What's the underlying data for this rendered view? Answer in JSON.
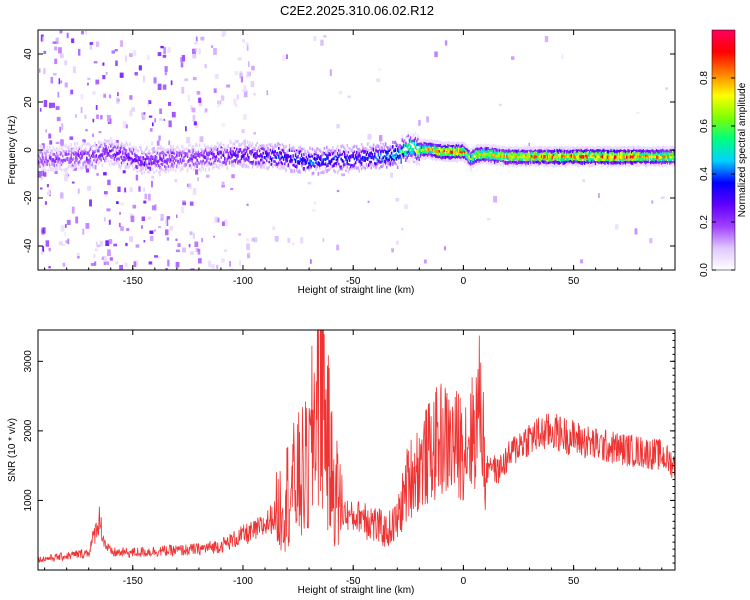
{
  "figure": {
    "title": "C2E2.2025.310.06.02.R12"
  },
  "chart_data": [
    {
      "type": "heatmap",
      "xlabel": "Height of straight line (km)",
      "ylabel": "Frequency (Hz)",
      "xlim": [
        -193,
        96
      ],
      "ylim": [
        -50,
        50
      ],
      "xticks": [
        -150,
        -100,
        -50,
        0,
        50
      ],
      "yticks": [
        -40,
        -20,
        0,
        20,
        40
      ],
      "colorbar": {
        "label": "Normalized spectral amplitude",
        "range": [
          0.0,
          1.0
        ],
        "ticks": [
          0.0,
          0.2,
          0.4,
          0.6,
          0.8
        ],
        "tick_labels": [
          "0.0",
          "0.2",
          "0.4",
          "0.6",
          "0.8"
        ],
        "colormap": [
          "#ffffff",
          "#e0c8ff",
          "#a040ff",
          "#6000ff",
          "#0000ff",
          "#00d0ff",
          "#00ff80",
          "#80ff00",
          "#ffff00",
          "#ff8000",
          "#ff0000",
          "#ff0060"
        ]
      },
      "ridge": {
        "x": [
          -190,
          -175,
          -160,
          -145,
          -130,
          -115,
          -100,
          -85,
          -70,
          -55,
          -40,
          -30,
          -25,
          -20,
          -15,
          -10,
          -5,
          0,
          3,
          6,
          10,
          20,
          40,
          60,
          80,
          96
        ],
        "y": [
          -3,
          -2,
          0,
          -4,
          -3,
          -2,
          -1,
          -2,
          -4,
          -3,
          -2,
          -1,
          2,
          1,
          1,
          0,
          0,
          0,
          -3,
          -1,
          -1,
          -2,
          -2,
          -2,
          -2,
          -2
        ],
        "peak_amplitude": [
          0.2,
          0.22,
          0.25,
          0.3,
          0.22,
          0.25,
          0.3,
          0.35,
          0.4,
          0.35,
          0.4,
          0.5,
          0.65,
          0.7,
          0.8,
          0.9,
          0.95,
          0.85,
          0.7,
          0.8,
          0.75,
          0.8,
          0.85,
          0.9,
          0.85,
          0.75
        ]
      }
    },
    {
      "type": "line",
      "xlabel": "Height of straight line (km)",
      "ylabel": "SNR (10 * v/v)",
      "xlim": [
        -193,
        96
      ],
      "ylim": [
        0,
        3450
      ],
      "xticks": [
        -150,
        -100,
        -50,
        0,
        50
      ],
      "yticks": [
        1000,
        2000,
        3000
      ],
      "color": "#ee3333",
      "series": [
        {
          "x": [
            -193,
            -180,
            -170,
            -165,
            -163,
            -160,
            -150,
            -140,
            -130,
            -120,
            -110,
            -100,
            -95,
            -90,
            -85,
            -80,
            -75,
            -70,
            -67,
            -65,
            -62,
            -60,
            -55,
            -50,
            -45,
            -40,
            -35,
            -30,
            -25,
            -20,
            -15,
            -10,
            -5,
            0,
            5,
            8,
            10,
            12,
            15,
            20,
            25,
            30,
            40,
            50,
            60,
            70,
            80,
            90,
            96
          ],
          "y": [
            150,
            200,
            250,
            750,
            400,
            250,
            250,
            270,
            280,
            300,
            350,
            500,
            550,
            650,
            800,
            1100,
            1300,
            1450,
            2400,
            3300,
            2000,
            1400,
            850,
            750,
            800,
            650,
            550,
            700,
            1300,
            1500,
            1700,
            1900,
            1800,
            1800,
            2000,
            2500,
            1300,
            1600,
            1400,
            1600,
            1800,
            1900,
            2000,
            1900,
            1800,
            1750,
            1700,
            1650,
            1500
          ]
        }
      ]
    }
  ]
}
